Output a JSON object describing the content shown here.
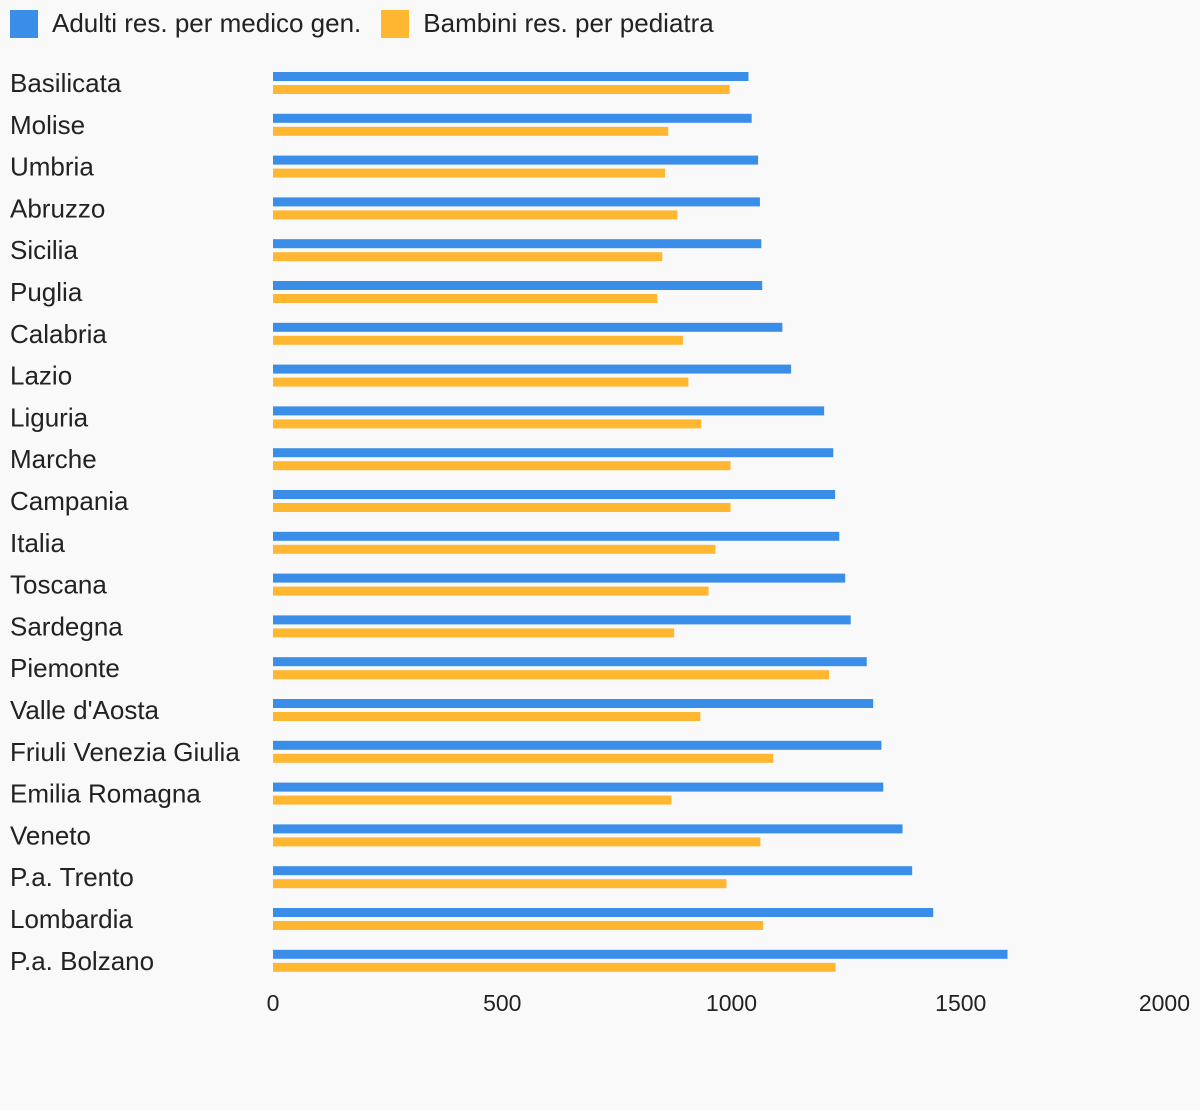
{
  "chart_data": {
    "type": "bar",
    "orientation": "horizontal",
    "legend_position": "top-left",
    "grid": false,
    "xlim": [
      0,
      2000
    ],
    "x_ticks": [
      "0",
      "500",
      "1000",
      "1500",
      "2000"
    ],
    "categories": [
      "Basilicata",
      "Molise",
      "Umbria",
      "Abruzzo",
      "Sicilia",
      "Puglia",
      "Calabria",
      "Lazio",
      "Liguria",
      "Marche",
      "Campania",
      "Italia",
      "Toscana",
      "Sardegna",
      "Piemonte",
      "Valle d'Aosta",
      "Friuli Venezia Giulia",
      "Emilia Romagna",
      "Veneto",
      "P.a. Trento",
      "Lombardia",
      "P.a. Bolzano"
    ],
    "series": [
      {
        "name": "Adulti res. per medico gen.",
        "color": "#3a8ee8",
        "values": [
          1037,
          1044,
          1058,
          1062,
          1065,
          1067,
          1111,
          1130,
          1202,
          1222,
          1226,
          1235,
          1248,
          1260,
          1295,
          1309,
          1327,
          1331,
          1373,
          1394,
          1440,
          1602
        ]
      },
      {
        "name": "Bambini res. per pediatra",
        "color": "#ffb732",
        "values": [
          996,
          862,
          855,
          882,
          849,
          838,
          894,
          906,
          934,
          998,
          998,
          965,
          950,
          875,
          1213,
          932,
          1091,
          869,
          1063,
          989,
          1069,
          1227
        ]
      }
    ]
  }
}
